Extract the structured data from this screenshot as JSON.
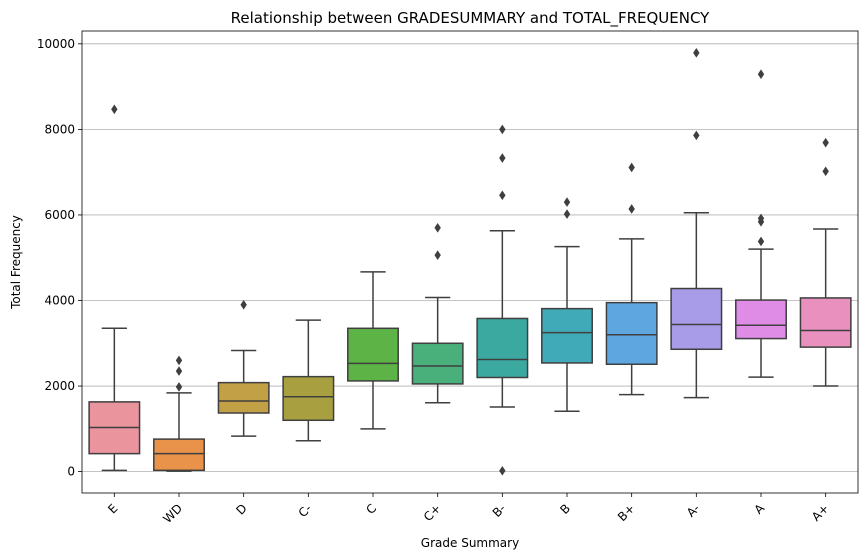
{
  "chart_data": {
    "type": "box",
    "title": "Relationship between GRADESUMMARY and TOTAL_FREQUENCY",
    "xlabel": "Grade Summary",
    "ylabel": "Total Frequency",
    "ylim": [
      -500,
      10300
    ],
    "yticks": [
      0,
      2000,
      4000,
      6000,
      8000,
      10000
    ],
    "grid": "horizontal",
    "categories": [
      "E",
      "WD",
      "D",
      "C-",
      "C",
      "C+",
      "B-",
      "B",
      "B+",
      "A-",
      "A",
      "A+"
    ],
    "boxes": [
      {
        "category": "E",
        "color": "#ea949e",
        "whisker_low": 30,
        "q1": 420,
        "median": 1030,
        "q3": 1630,
        "whisker_high": 3350,
        "outliers": [
          8470
        ]
      },
      {
        "category": "WD",
        "color": "#e9924a",
        "whisker_low": 10,
        "q1": 30,
        "median": 420,
        "q3": 760,
        "whisker_high": 1840,
        "outliers": [
          1980,
          2350,
          2600
        ]
      },
      {
        "category": "D",
        "color": "#c2a045",
        "whisker_low": 830,
        "q1": 1370,
        "median": 1650,
        "q3": 2080,
        "whisker_high": 2830,
        "outliers": [
          3900
        ]
      },
      {
        "category": "C-",
        "color": "#a8a040",
        "whisker_low": 720,
        "q1": 1200,
        "median": 1750,
        "q3": 2220,
        "whisker_high": 3540,
        "outliers": []
      },
      {
        "category": "C",
        "color": "#5db346",
        "whisker_low": 1000,
        "q1": 2120,
        "median": 2530,
        "q3": 3350,
        "whisker_high": 4670,
        "outliers": []
      },
      {
        "category": "C+",
        "color": "#49b07c",
        "whisker_low": 1610,
        "q1": 2050,
        "median": 2470,
        "q3": 3000,
        "whisker_high": 4070,
        "outliers": [
          5060,
          5700
        ]
      },
      {
        "category": "B-",
        "color": "#3ca9a0",
        "whisker_low": 1510,
        "q1": 2200,
        "median": 2620,
        "q3": 3580,
        "whisker_high": 5630,
        "outliers": [
          20,
          6460,
          7330,
          8000
        ]
      },
      {
        "category": "B",
        "color": "#41aab8",
        "whisker_low": 1410,
        "q1": 2540,
        "median": 3250,
        "q3": 3810,
        "whisker_high": 5260,
        "outliers": [
          6020,
          6300
        ]
      },
      {
        "category": "B+",
        "color": "#5ea6e0",
        "whisker_low": 1800,
        "q1": 2510,
        "median": 3200,
        "q3": 3950,
        "whisker_high": 5440,
        "outliers": [
          6140,
          7110
        ]
      },
      {
        "category": "A-",
        "color": "#a89be8",
        "whisker_low": 1730,
        "q1": 2860,
        "median": 3440,
        "q3": 4280,
        "whisker_high": 6050,
        "outliers": [
          7860,
          9790
        ]
      },
      {
        "category": "A",
        "color": "#df8ce6",
        "whisker_low": 2210,
        "q1": 3110,
        "median": 3420,
        "q3": 4010,
        "whisker_high": 5200,
        "outliers": [
          5380,
          5840,
          5920,
          9290
        ]
      },
      {
        "category": "A+",
        "color": "#ea90be",
        "whisker_low": 2000,
        "q1": 2910,
        "median": 3300,
        "q3": 4060,
        "whisker_high": 5670,
        "outliers": [
          7020,
          7690
        ]
      }
    ]
  }
}
